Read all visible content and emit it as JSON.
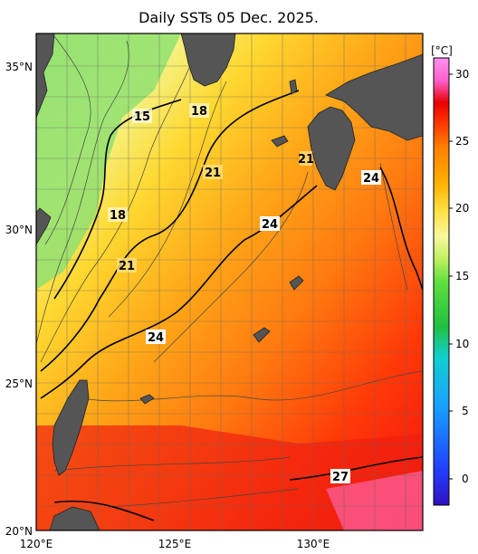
{
  "title": "Daily SSTs 05 Dec. 2025.",
  "map": {
    "lon_ticks": [
      "120°E",
      "125°E",
      "130°E"
    ],
    "lat_ticks": [
      "35°N",
      "30°N",
      "25°N",
      "20°N"
    ],
    "contour_labels": [
      "15",
      "18",
      "18",
      "21",
      "21",
      "21",
      "24",
      "24",
      "24",
      "27"
    ]
  },
  "colorbar": {
    "unit": "[°C]",
    "ticks": [
      "30",
      "25",
      "20",
      "15",
      "10",
      "5",
      "0"
    ],
    "colors": [
      "#3010c0",
      "#2040ff",
      "#18a0ff",
      "#10d0d0",
      "#20c040",
      "#60e040",
      "#c0f060",
      "#f8f8a0",
      "#ffe040",
      "#ffb000",
      "#ff8000",
      "#ff3000",
      "#e80000",
      "#ff60d0",
      "#ff90f0"
    ]
  }
}
